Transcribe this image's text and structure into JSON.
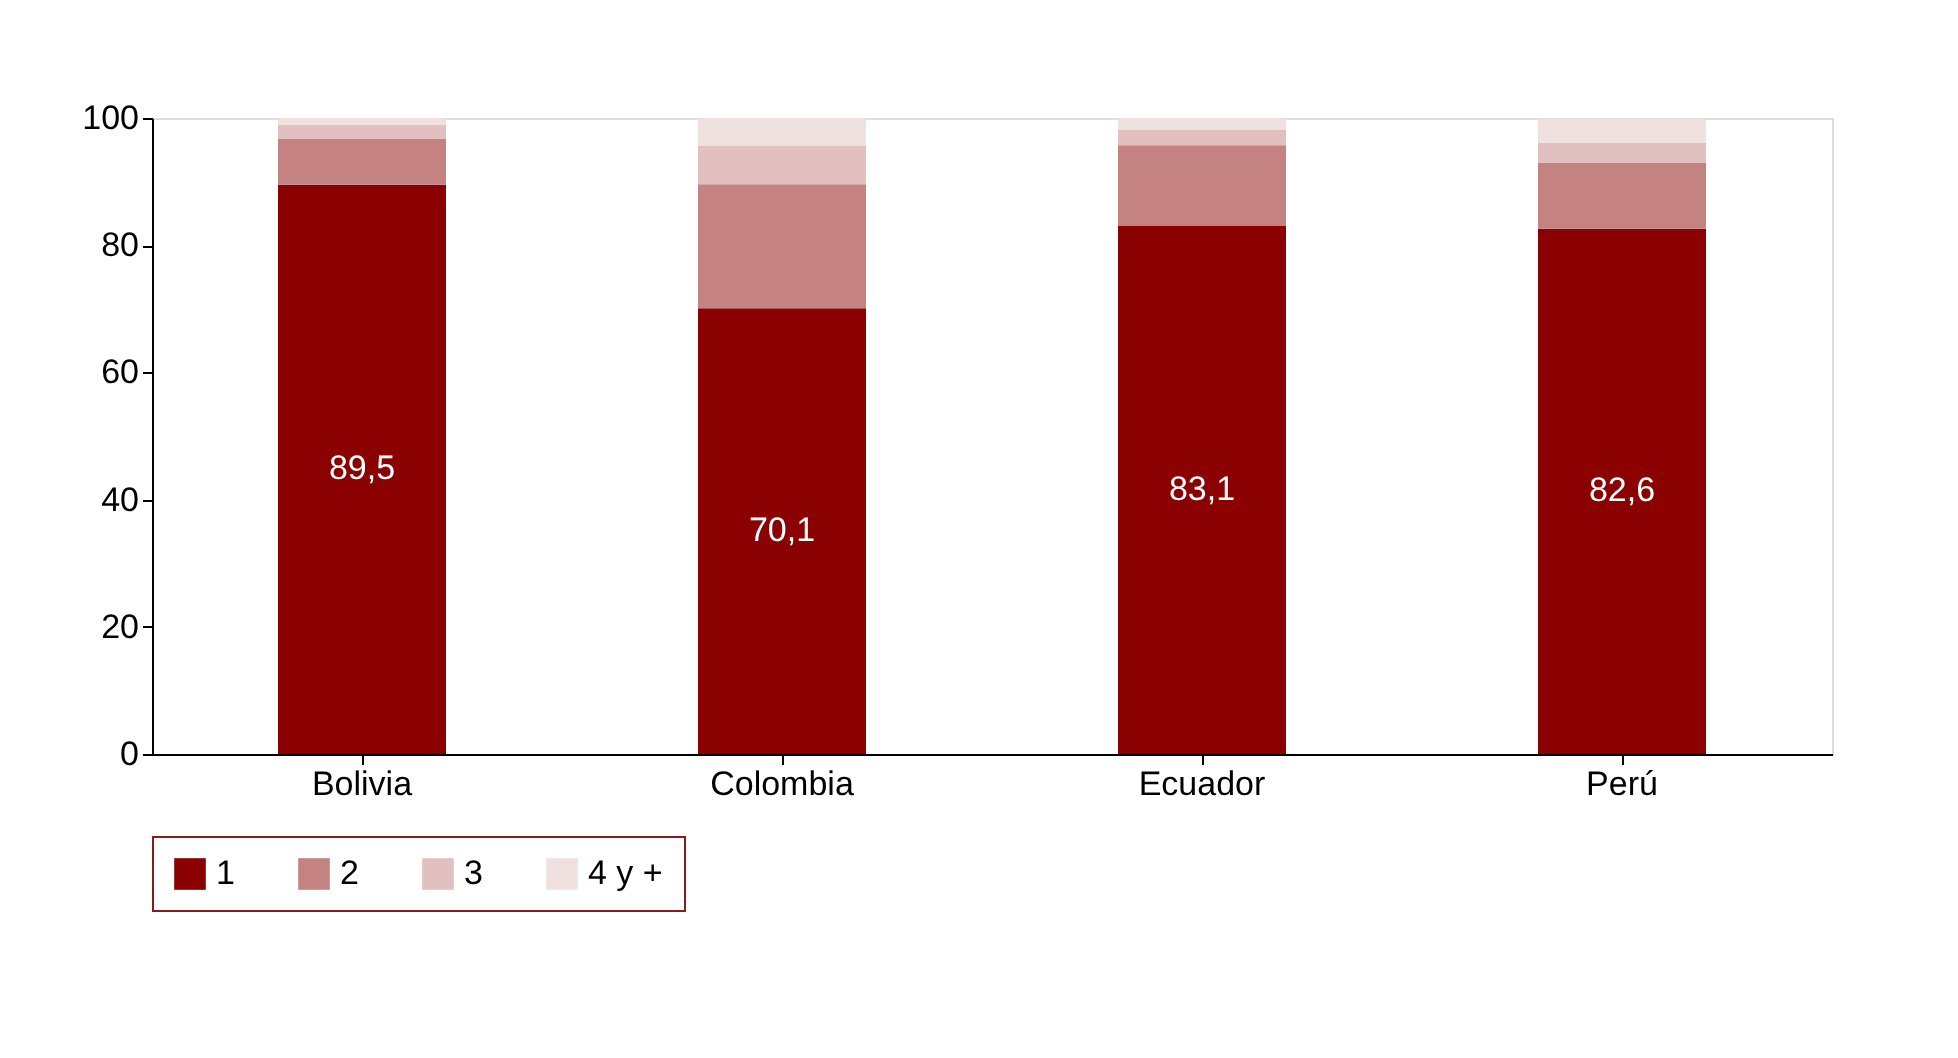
{
  "chart_data": {
    "type": "bar",
    "stacked": true,
    "categories": [
      "Bolivia",
      "Colombia",
      "Ecuador",
      "Perú"
    ],
    "series": [
      {
        "name": "1",
        "color": "#8b0000",
        "values": [
          89.5,
          70.1,
          83.1,
          82.6
        ],
        "value_labels": [
          "89,5",
          "70,1",
          "83,1",
          "82,6"
        ]
      },
      {
        "name": "2",
        "color": "#c48280",
        "values": [
          7.2,
          19.5,
          12.6,
          10.4
        ]
      },
      {
        "name": "3",
        "color": "#e2c0c0",
        "values": [
          2.2,
          6.0,
          2.5,
          3.1
        ]
      },
      {
        "name": "4 y +",
        "color": "#f0e0e0",
        "values": [
          1.1,
          4.4,
          1.8,
          3.8
        ]
      }
    ],
    "ylim": [
      0,
      100
    ],
    "yticks": [
      0,
      20,
      40,
      60,
      80,
      100
    ],
    "grid": false,
    "legend": "bottom"
  }
}
